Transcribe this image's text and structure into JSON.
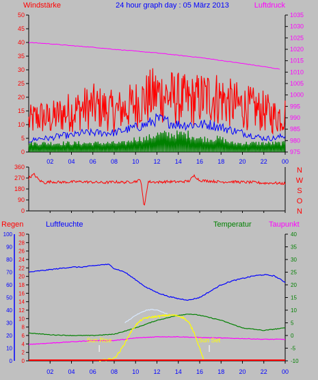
{
  "header": {
    "left_label": "Windstärke",
    "title": "24 hour graph day : 05 März 2013",
    "right_label": "Luftdruck"
  },
  "colors": {
    "wind_max": "#ff0000",
    "wind_avg": "#0000ff",
    "wind_min": "#008000",
    "pressure": "#ff00ff",
    "direction": "#ff0000",
    "rain": "#ff0000",
    "humidity": "#0000ff",
    "temperature": "#008000",
    "dewpoint": "#ff00ff",
    "solar": "#ffff00",
    "sun_labels": "#ffff00",
    "left_axis": "#ff0000",
    "right_axis": "#ff00ff",
    "background": "#c0c0c0",
    "axis_lines": "#000000"
  },
  "lower_labels": {
    "rain": "Regen",
    "humidity": "Luftfeuchte",
    "temperature": "Temperatur",
    "dewpoint": "Taupunkt",
    "sunrise": "Sun Rise",
    "sunset": "Sun Set"
  },
  "direction_letters": [
    "N",
    "W",
    "S",
    "O",
    "N"
  ],
  "chart_data": [
    {
      "type": "line",
      "series": [
        {
          "name": "Windstärke",
          "role": "max",
          "x": [
            0,
            1,
            2,
            3,
            4,
            5,
            6,
            7,
            8,
            9,
            10,
            11,
            12,
            13,
            14,
            15,
            16,
            17,
            18,
            19,
            20,
            21,
            22,
            23,
            24
          ],
          "values": [
            12,
            14,
            13,
            15,
            16,
            17,
            18,
            17,
            16,
            17,
            19,
            21,
            23,
            22,
            21,
            20,
            21,
            22,
            21,
            19,
            18,
            17,
            16,
            14,
            15
          ]
        },
        {
          "role": "avg",
          "x": [
            0,
            1,
            2,
            3,
            4,
            5,
            6,
            7,
            8,
            9,
            10,
            11,
            12,
            13,
            14,
            15,
            16,
            17,
            18,
            19,
            20,
            21,
            22,
            23,
            24
          ],
          "values": [
            4,
            5,
            5,
            6,
            6,
            7,
            7,
            7,
            7,
            8,
            9,
            10,
            12,
            11,
            10,
            10,
            10,
            10,
            9,
            8,
            7,
            6,
            5,
            5,
            6
          ]
        },
        {
          "role": "min",
          "x": [
            0,
            1,
            2,
            3,
            4,
            5,
            6,
            7,
            8,
            9,
            10,
            11,
            12,
            13,
            14,
            15,
            16,
            17,
            18,
            19,
            20,
            21,
            22,
            23,
            24
          ],
          "values": [
            2,
            2,
            2,
            2,
            2,
            2,
            2,
            2,
            2,
            2,
            3,
            3,
            4,
            4,
            4,
            4,
            3,
            3,
            3,
            2,
            2,
            2,
            2,
            2,
            2
          ]
        },
        {
          "name": "Luftdruck",
          "axis": "right",
          "x": [
            0,
            2,
            4,
            6,
            8,
            10,
            12,
            14,
            16,
            18,
            20,
            22,
            23.5
          ],
          "values": [
            1023,
            1022.4,
            1021.6,
            1020.9,
            1020,
            1019.2,
            1018.4,
            1017.4,
            1016.4,
            1015.1,
            1013.8,
            1012.4,
            1011.3
          ]
        }
      ],
      "x_ticks": [
        "02",
        "04",
        "06",
        "08",
        "10",
        "12",
        "14",
        "16",
        "18",
        "20",
        "22",
        "00"
      ],
      "y_ticks": [
        "0",
        "5",
        "10",
        "15",
        "20",
        "25",
        "30",
        "35",
        "40",
        "45",
        "50"
      ],
      "y2_ticks": [
        "975",
        "980",
        "985",
        "990",
        "995",
        "1000",
        "1005",
        "1010",
        "1015",
        "1020",
        "1025",
        "1030",
        "1035"
      ],
      "xlim": [
        0,
        24
      ],
      "ylim": [
        0,
        50
      ],
      "y2lim": [
        975,
        1035
      ]
    },
    {
      "type": "line",
      "series": [
        {
          "x": [
            0,
            0.5,
            1,
            1.5,
            2,
            3,
            4,
            5,
            6,
            7,
            8,
            9,
            10,
            10.5,
            10.8,
            11,
            11.2,
            11.5,
            12,
            13,
            14,
            15,
            15.5,
            16,
            17,
            18,
            19,
            20,
            21,
            22,
            23,
            23.5
          ],
          "values": [
            270,
            300,
            250,
            230,
            240,
            235,
            238,
            240,
            236,
            232,
            238,
            235,
            242,
            255,
            20,
            150,
            240,
            238,
            236,
            240,
            238,
            245,
            290,
            250,
            245,
            238,
            240,
            236,
            235,
            228,
            230,
            225
          ]
        }
      ],
      "y_ticks": [
        "0",
        "90",
        "180",
        "270",
        "360"
      ],
      "xlim": [
        0,
        24
      ],
      "ylim": [
        0,
        360
      ]
    },
    {
      "type": "line",
      "series": [
        {
          "name": "Luftfeuchte",
          "x": [
            0,
            1,
            2,
            3,
            4,
            5,
            6,
            7,
            7.5,
            8,
            9,
            10,
            11,
            12,
            13,
            14,
            15,
            16,
            17,
            18,
            19,
            20,
            21,
            22,
            23,
            24
          ],
          "values": [
            70,
            71,
            72,
            73,
            74,
            74,
            75,
            76,
            76,
            73,
            70,
            64,
            58,
            54,
            51,
            49,
            48,
            50,
            55,
            60,
            63,
            65,
            67,
            68,
            67,
            62
          ]
        },
        {
          "name": "Temperatur",
          "x": [
            0,
            2,
            4,
            6,
            8,
            10,
            12,
            14,
            15,
            16,
            18,
            20,
            22,
            24
          ],
          "values": [
            1,
            0.3,
            0,
            0,
            0.5,
            3,
            6,
            8,
            8.5,
            8,
            6,
            3,
            2,
            3
          ]
        },
        {
          "name": "Taupunkt",
          "x": [
            0,
            2,
            4,
            6,
            8,
            10,
            12,
            14,
            16,
            18,
            20,
            22,
            24
          ],
          "values": [
            -3.5,
            -3,
            -2.5,
            -2,
            -2,
            -1,
            -0.5,
            -0.5,
            -0.8,
            -1,
            -1.2,
            -1.5,
            -1.5
          ]
        },
        {
          "name": "Regen",
          "x": [
            0,
            24
          ],
          "values": [
            0,
            0
          ]
        },
        {
          "role": "solar",
          "x": [
            6.6,
            7,
            7.5,
            8,
            8.5,
            9,
            9.5,
            10,
            10.5,
            11,
            11.5,
            12,
            12.5,
            13,
            13.5,
            14,
            14.5,
            15,
            15.5,
            16,
            16.4
          ],
          "values": [
            0,
            0.5,
            1.2,
            2,
            7,
            14,
            22,
            28,
            32,
            34,
            34.5,
            35,
            35.5,
            36,
            36,
            35.5,
            34,
            30,
            22,
            10,
            0
          ]
        },
        {
          "role": "solar_max",
          "x": [
            9,
            10,
            11,
            11.5,
            12,
            13
          ],
          "values": [
            30,
            36,
            40,
            40.5,
            40,
            37
          ]
        }
      ],
      "sunrise_hour": 6.6,
      "sunset_hour": 16.9,
      "y_ticks_rain": [
        "0",
        "10",
        "20",
        "30",
        "40",
        "50",
        "60",
        "70",
        "80",
        "90",
        "100"
      ],
      "y_ticks_humidity": [
        "0",
        "2",
        "4",
        "6",
        "8",
        "10",
        "12",
        "14",
        "16",
        "18",
        "20",
        "22",
        "24",
        "26",
        "28",
        "30"
      ],
      "y_ticks_temp": [
        "-10",
        "-5",
        "0",
        "5",
        "10",
        "15",
        "20",
        "25",
        "30",
        "35",
        "40"
      ],
      "x_ticks": [
        "02",
        "04",
        "06",
        "08",
        "10",
        "12",
        "14",
        "16",
        "18",
        "20",
        "22",
        "00"
      ],
      "xlim": [
        0,
        24
      ],
      "ylim_humidity": [
        0,
        100
      ],
      "ylim_temp": [
        -10,
        40
      ]
    }
  ]
}
